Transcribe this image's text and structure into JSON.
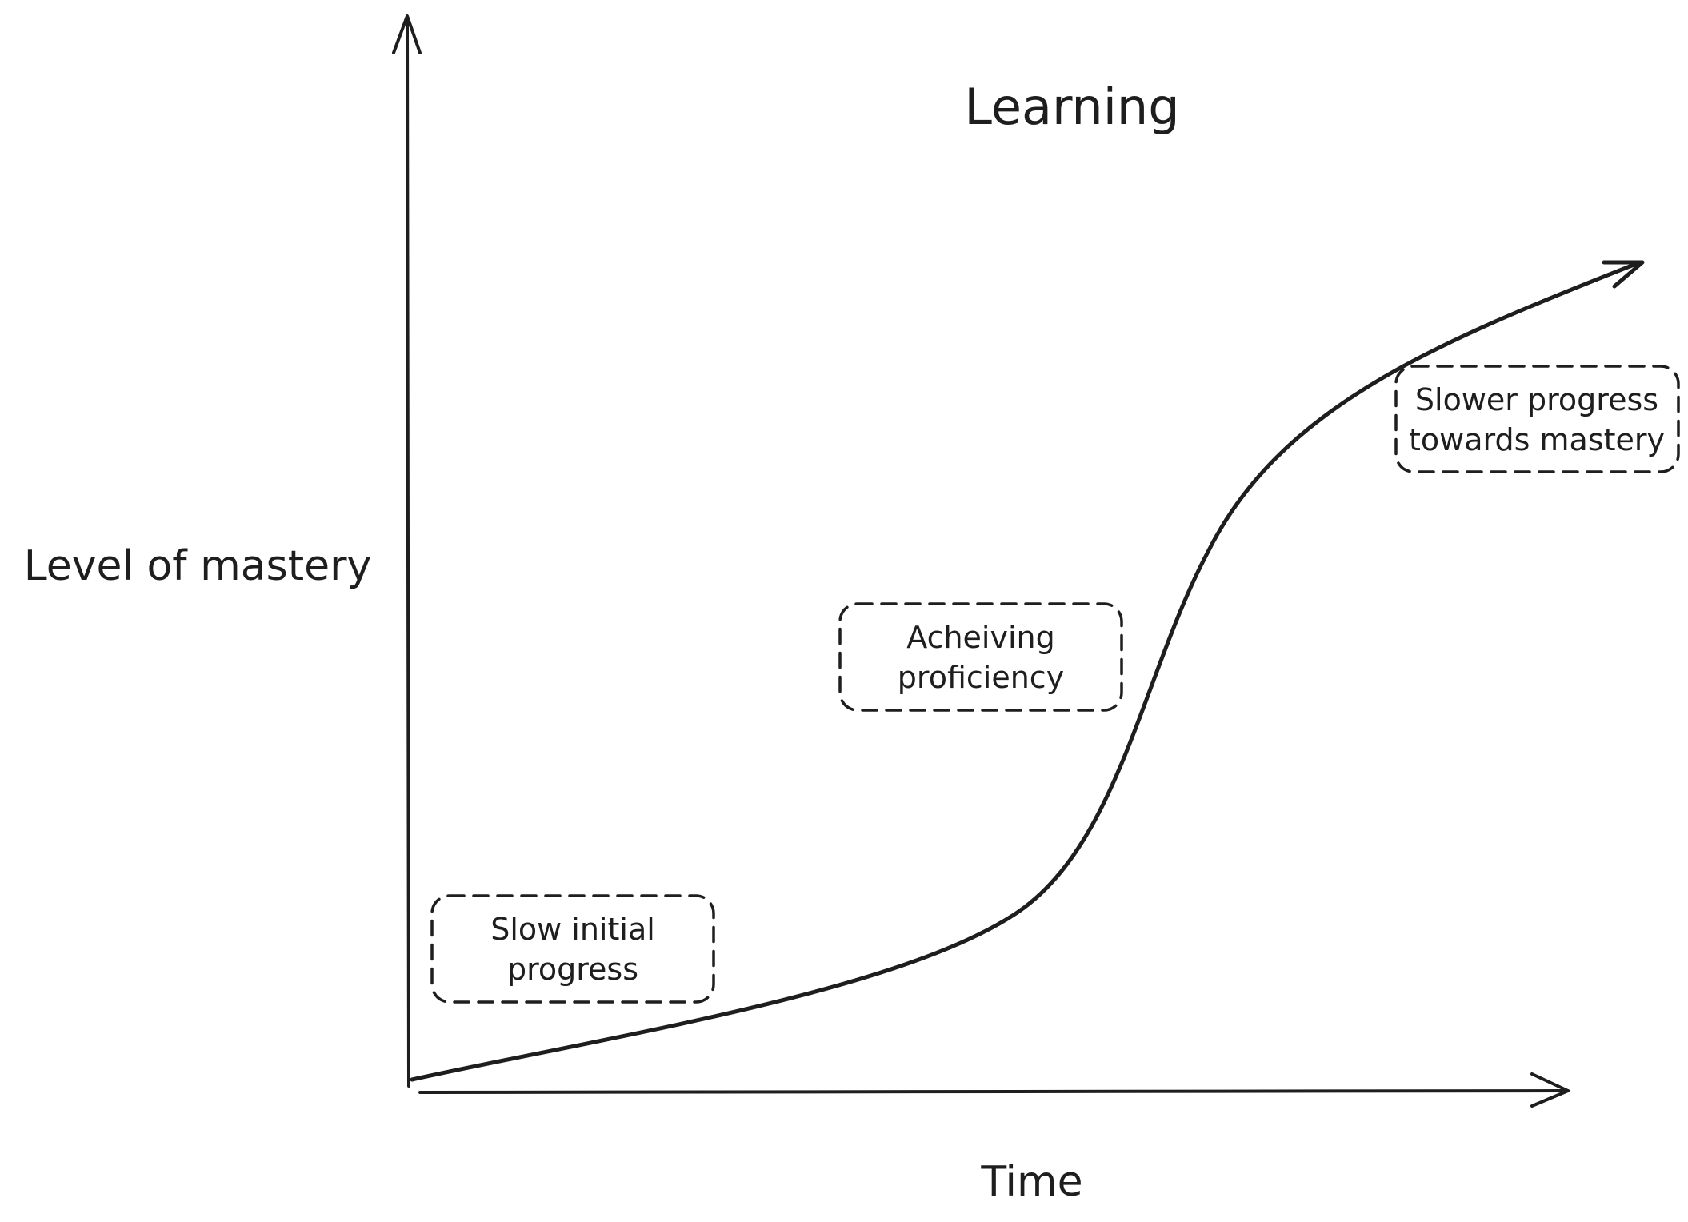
{
  "diagram": {
    "title": "Learning",
    "x_axis_label": "Time",
    "y_axis_label": "Level of mastery",
    "annotations": [
      {
        "lines": [
          "Slow initial",
          "progress"
        ]
      },
      {
        "lines": [
          "Acheiving",
          "proficiency"
        ]
      },
      {
        "lines": [
          "Slower progress",
          "towards mastery"
        ]
      }
    ],
    "colors": {
      "ink": "#1e1e1e",
      "background": "#ffffff"
    }
  }
}
